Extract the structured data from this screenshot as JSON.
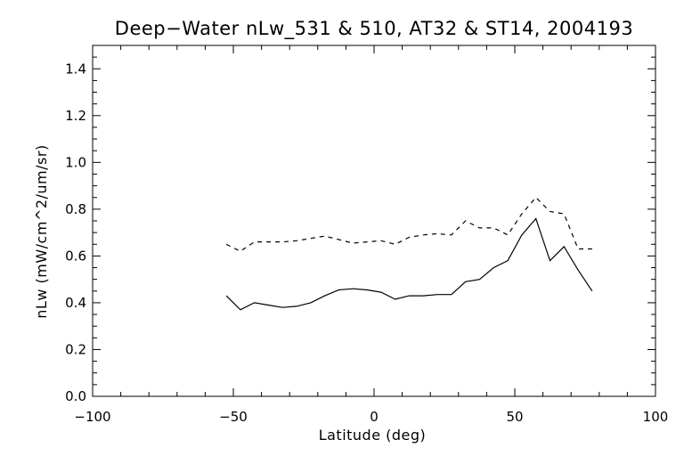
{
  "chart_data": {
    "type": "line",
    "title": "Deep−Water nLw_531 & 510, AT32 & ST14, 2004193",
    "xlabel": "Latitude (deg)",
    "ylabel": "nLw (mW/cm^2/um/sr)",
    "xlim": [
      -100,
      100
    ],
    "ylim": [
      0.0,
      1.5
    ],
    "x_ticks": [
      -100,
      -50,
      0,
      50,
      100
    ],
    "x_tick_labels": [
      "−100",
      "−50",
      "0",
      "50",
      "100"
    ],
    "y_ticks": [
      0.0,
      0.2,
      0.4,
      0.6,
      0.8,
      1.0,
      1.2,
      1.4
    ],
    "y_tick_labels": [
      "0.0",
      "0.2",
      "0.4",
      "0.6",
      "0.8",
      "1.0",
      "1.2",
      "1.4"
    ],
    "grid": false,
    "legend": "none",
    "series": [
      {
        "style": "solid",
        "color": "#000000",
        "x": [
          -52.5,
          -47.5,
          -42.5,
          -37.5,
          -32.5,
          -27.5,
          -22.5,
          -17.5,
          -12.5,
          -7.5,
          -2.5,
          2.5,
          7.5,
          12.5,
          17.5,
          22.5,
          27.5,
          32.5,
          37.5,
          42.5,
          47.5,
          52.5,
          57.5,
          62.5,
          67.5,
          72.5,
          77.5
        ],
        "values": [
          0.43,
          0.37,
          0.4,
          0.39,
          0.38,
          0.385,
          0.4,
          0.43,
          0.455,
          0.46,
          0.455,
          0.445,
          0.415,
          0.43,
          0.43,
          0.435,
          0.435,
          0.49,
          0.5,
          0.55,
          0.58,
          0.69,
          0.76,
          0.58,
          0.64,
          0.54,
          0.45
        ]
      },
      {
        "style": "dashed",
        "color": "#000000",
        "x": [
          -52.5,
          -47.5,
          -42.5,
          -37.5,
          -32.5,
          -27.5,
          -22.5,
          -17.5,
          -12.5,
          -7.5,
          -2.5,
          2.5,
          7.5,
          12.5,
          17.5,
          22.5,
          27.5,
          32.5,
          37.5,
          42.5,
          47.5,
          52.5,
          57.5,
          62.5,
          67.5,
          72.5,
          77.5
        ],
        "values": [
          0.65,
          0.62,
          0.66,
          0.66,
          0.66,
          0.665,
          0.675,
          0.685,
          0.67,
          0.655,
          0.66,
          0.665,
          0.65,
          0.68,
          0.69,
          0.695,
          0.69,
          0.75,
          0.72,
          0.72,
          0.69,
          0.78,
          0.85,
          0.79,
          0.78,
          0.63,
          0.63
        ]
      }
    ]
  }
}
